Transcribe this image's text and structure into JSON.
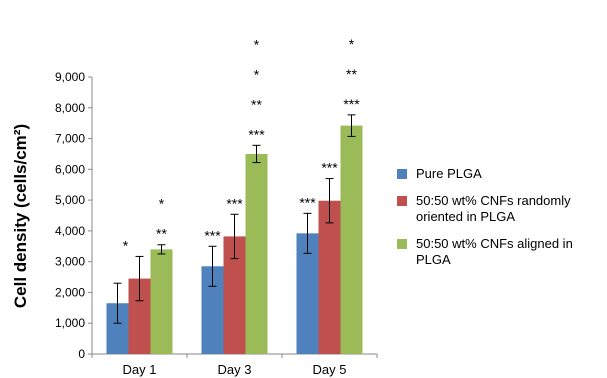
{
  "chart_data": {
    "type": "bar",
    "ylabel": "Cell density (cells/cm²)",
    "xlabel": "",
    "ylim": [
      0,
      9000
    ],
    "ytick_step": 1000,
    "ytick_labels": [
      "0",
      "1,000",
      "2,000",
      "3,000",
      "4,000",
      "5,000",
      "6,000",
      "7,000",
      "8,000",
      "9,000"
    ],
    "categories": [
      "Day 1",
      "Day 3",
      "Day 5"
    ],
    "grid": false,
    "legend_position": "right",
    "series": [
      {
        "name": "Pure PLGA",
        "color": "#4F81BD",
        "values": [
          1650,
          2850,
          3920
        ],
        "errors": [
          650,
          650,
          650
        ],
        "annotations": [
          [],
          [
            "***"
          ],
          [
            "***"
          ]
        ]
      },
      {
        "name": "50:50 wt% CNFs randomly oriented in PLGA",
        "color": "#C0504D",
        "values": [
          2450,
          3820,
          4980
        ],
        "errors": [
          720,
          720,
          720
        ],
        "annotations": [
          [
            "*"
          ],
          [
            "***"
          ],
          [
            "***"
          ]
        ]
      },
      {
        "name": "50:50 wt% CNFs aligned in PLGA",
        "color": "#9BBB59",
        "values": [
          3400,
          6500,
          7420
        ],
        "errors": [
          150,
          280,
          350
        ],
        "annotations": [
          [
            "**",
            "*"
          ],
          [
            "***",
            "**",
            "*",
            "*"
          ],
          [
            "***",
            "**",
            "*"
          ]
        ]
      }
    ]
  }
}
